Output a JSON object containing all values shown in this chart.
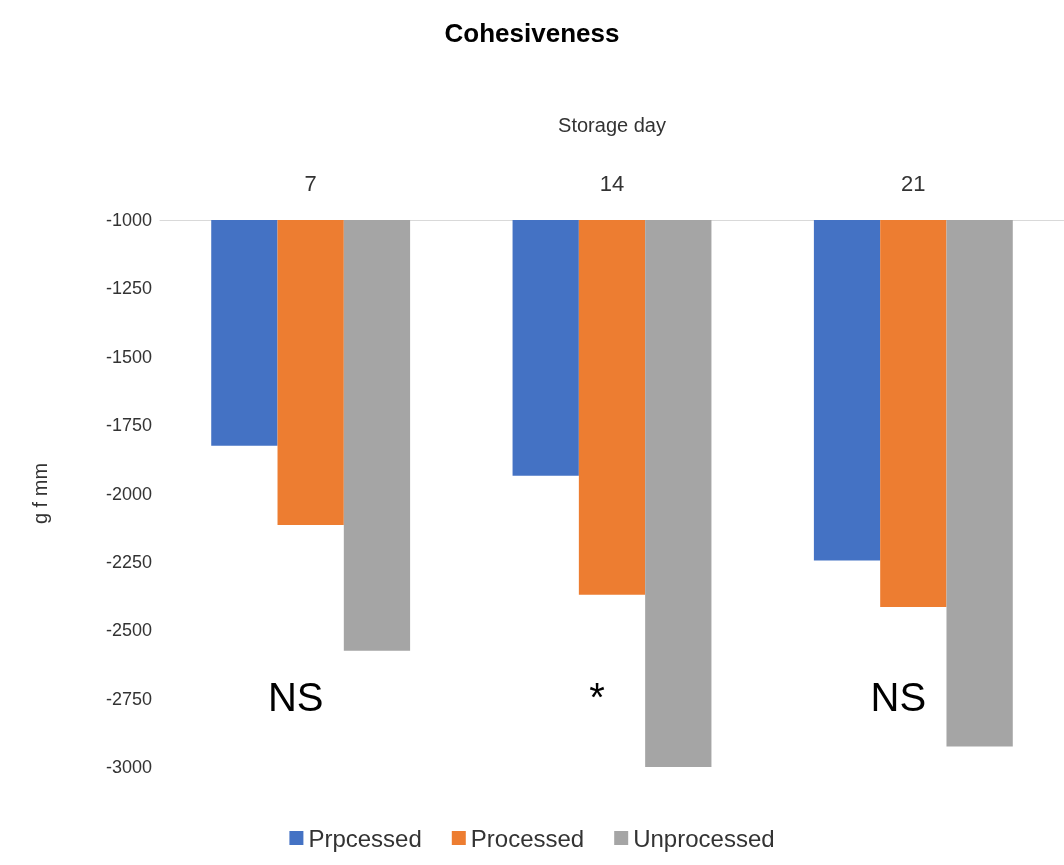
{
  "chart_data": {
    "type": "bar",
    "title": "Cohesiveness",
    "xlabel": "Storage day",
    "ylabel": "g f mm",
    "categories": [
      "7",
      "14",
      "21"
    ],
    "series": [
      {
        "name": "Prpcessed",
        "color": "#4472c4",
        "values": [
          -1825,
          -1935,
          -2245
        ]
      },
      {
        "name": "Processed",
        "color": "#ed7d31",
        "values": [
          -2115,
          -2370,
          -2415
        ]
      },
      {
        "name": "Unprocessed",
        "color": "#a5a5a5",
        "values": [
          -2575,
          -3000,
          -2925
        ]
      }
    ],
    "ylim": [
      -3000,
      -1000
    ],
    "yticks": [
      -3000,
      -2750,
      -2500,
      -2250,
      -2000,
      -1750,
      -1500,
      -1250,
      -1000
    ],
    "annotations": [
      "NS",
      "*",
      "NS"
    ],
    "grid": false,
    "legend": "bottom"
  }
}
